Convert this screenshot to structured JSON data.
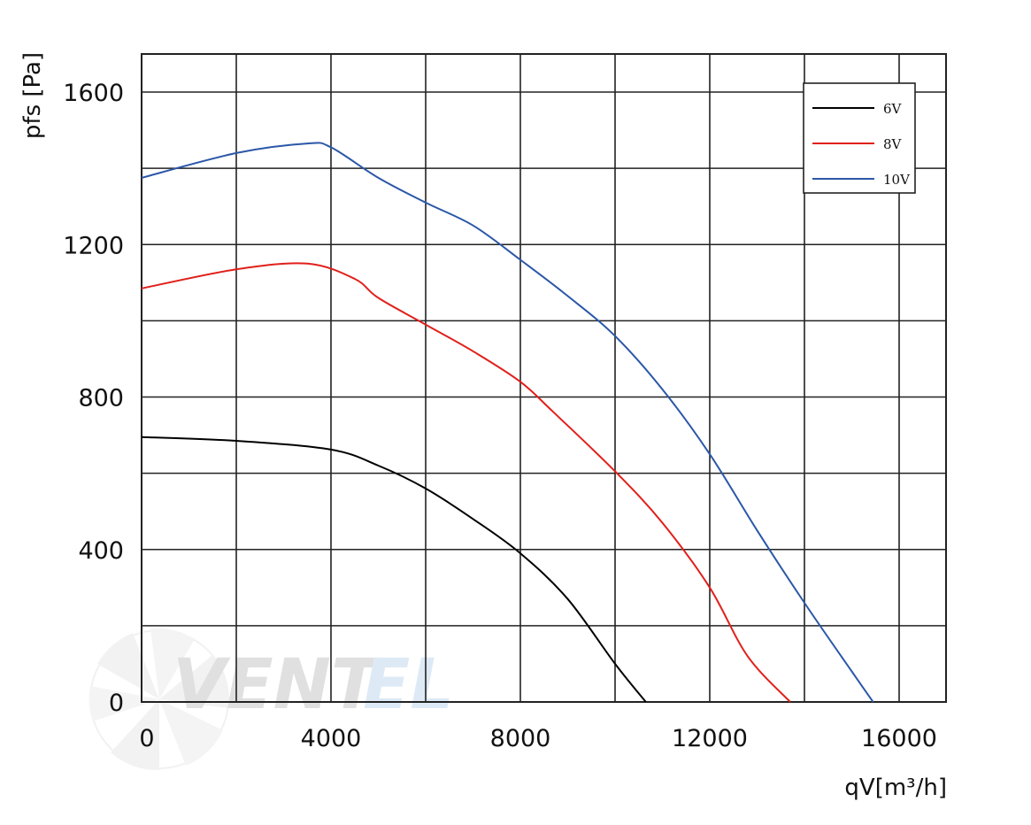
{
  "chart_data": {
    "type": "line",
    "xlabel": "qV[m³/h]",
    "ylabel": "pfs [Pa]",
    "xlim": [
      0,
      16000
    ],
    "ylim": [
      0,
      1600
    ],
    "x_ticks": [
      0,
      4000,
      8000,
      12000,
      16000
    ],
    "y_ticks": [
      0,
      400,
      800,
      1200,
      1600
    ],
    "grid": true,
    "legend_position": "top-right",
    "series": [
      {
        "name": "6V",
        "color": "#000000",
        "points": [
          [
            0,
            695
          ],
          [
            2000,
            685
          ],
          [
            4000,
            662
          ],
          [
            5000,
            620
          ],
          [
            6000,
            560
          ],
          [
            7000,
            480
          ],
          [
            8000,
            390
          ],
          [
            9000,
            270
          ],
          [
            10000,
            100
          ],
          [
            10650,
            0
          ]
        ]
      },
      {
        "name": "8V",
        "color": "#e0201b",
        "points": [
          [
            0,
            1085
          ],
          [
            2000,
            1135
          ],
          [
            3500,
            1150
          ],
          [
            4500,
            1110
          ],
          [
            5000,
            1060
          ],
          [
            6000,
            990
          ],
          [
            7000,
            920
          ],
          [
            8000,
            840
          ],
          [
            8700,
            760
          ],
          [
            10000,
            605
          ],
          [
            11000,
            470
          ],
          [
            12000,
            300
          ],
          [
            12800,
            120
          ],
          [
            13700,
            0
          ]
        ]
      },
      {
        "name": "10V",
        "color": "#2b57a8",
        "points": [
          [
            0,
            1375
          ],
          [
            2000,
            1440
          ],
          [
            3500,
            1465
          ],
          [
            4000,
            1455
          ],
          [
            5000,
            1375
          ],
          [
            6000,
            1310
          ],
          [
            7000,
            1250
          ],
          [
            8000,
            1160
          ],
          [
            9000,
            1065
          ],
          [
            10000,
            960
          ],
          [
            11000,
            820
          ],
          [
            12000,
            650
          ],
          [
            13000,
            450
          ],
          [
            14000,
            260
          ],
          [
            15000,
            80
          ],
          [
            15450,
            0
          ]
        ]
      }
    ]
  },
  "watermark": {
    "text_dark": "VENT",
    "text_light": "EL"
  }
}
